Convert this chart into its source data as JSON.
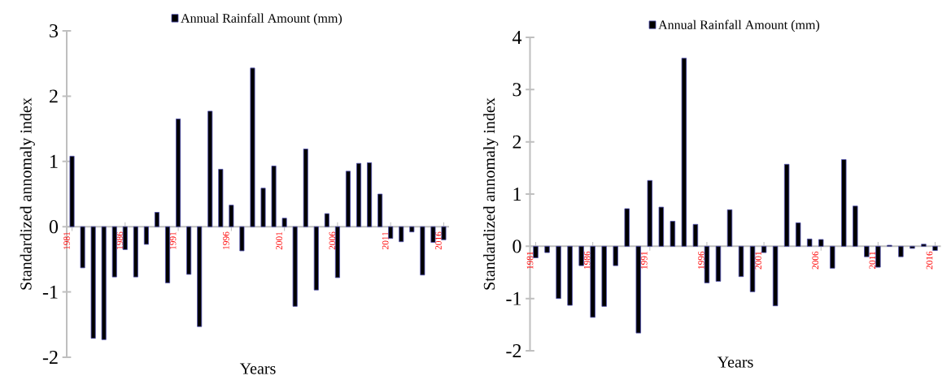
{
  "chart_data": [
    {
      "type": "bar",
      "xlabel": "Years",
      "ylabel": "Standardized annomaly index",
      "legend": "top",
      "categories": [
        "1981",
        null,
        null,
        null,
        null,
        "1986",
        null,
        null,
        null,
        null,
        "1991",
        null,
        null,
        null,
        null,
        "1996",
        null,
        null,
        null,
        null,
        "2001",
        null,
        null,
        null,
        null,
        "2006",
        null,
        null,
        null,
        null,
        "2011",
        null,
        null,
        null,
        null,
        "2016"
      ],
      "series": [
        {
          "name": "Annual Rainfall Amount (mm)",
          "color": "#000000",
          "values": [
            1.08,
            -0.63,
            -1.71,
            -1.73,
            -0.77,
            -0.35,
            -0.77,
            -0.27,
            0.22,
            -0.86,
            1.65,
            -0.73,
            -1.53,
            1.77,
            0.88,
            0.33,
            -0.37,
            2.43,
            0.59,
            0.93,
            0.13,
            -1.22,
            1.19,
            -0.97,
            0.2,
            -0.78,
            0.85,
            0.97,
            0.98,
            0.5,
            -0.18,
            -0.23,
            -0.08,
            -0.74,
            -0.24,
            -0.2
          ]
        }
      ],
      "ylim": [
        -2,
        3
      ],
      "yticks": [
        -2,
        -1,
        0,
        1,
        2,
        3
      ]
    },
    {
      "type": "bar",
      "xlabel": "Years",
      "ylabel": "Standardized annomaly index",
      "legend": "top",
      "categories": [
        "1981",
        null,
        null,
        null,
        null,
        "1986",
        null,
        null,
        null,
        null,
        "1991",
        null,
        null,
        null,
        null,
        "1996",
        null,
        null,
        null,
        null,
        "2001",
        null,
        null,
        null,
        null,
        "2006",
        null,
        null,
        null,
        null,
        "2011",
        null,
        null,
        null,
        null,
        "2016"
      ],
      "series": [
        {
          "name": "Annual Rainfall Amount (mm)",
          "color": "#000000",
          "values": [
            -0.22,
            -0.12,
            -1.0,
            -1.13,
            -0.37,
            -1.36,
            -1.15,
            -0.37,
            0.72,
            -1.66,
            1.26,
            0.75,
            0.48,
            3.6,
            0.42,
            -0.7,
            -0.67,
            0.7,
            -0.58,
            -0.87,
            -0.12,
            -1.14,
            1.57,
            0.45,
            0.14,
            0.13,
            -0.42,
            1.66,
            0.77,
            -0.2,
            -0.4,
            0.02,
            -0.2,
            -0.04,
            0.04,
            -0.08
          ]
        }
      ],
      "ylim": [
        -2,
        4
      ],
      "yticks": [
        -2,
        -1,
        0,
        1,
        2,
        3,
        4
      ]
    }
  ]
}
